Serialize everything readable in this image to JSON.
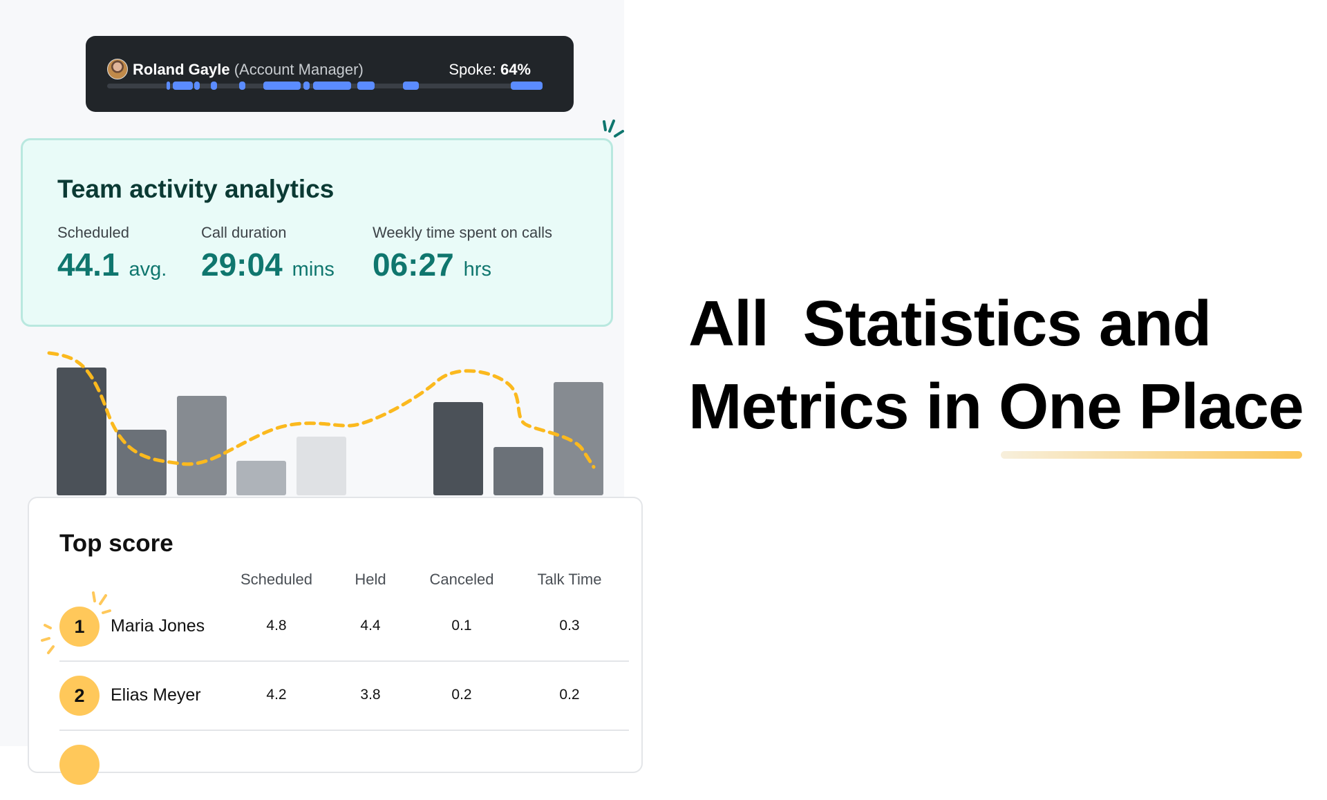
{
  "speaker_card": {
    "name": "Roland Gayle",
    "role": "(Account Manager)",
    "spoke_label": "Spoke:",
    "spoke_value": "64%",
    "spoke_percent": 64
  },
  "analytics": {
    "title": "Team activity analytics",
    "stats": [
      {
        "label": "Scheduled",
        "value": "44.1",
        "unit": "avg."
      },
      {
        "label": "Call duration",
        "value": "29:04",
        "unit": "mins"
      },
      {
        "label": "Weekly time spent on calls",
        "value": "06:27",
        "unit": "hrs"
      }
    ]
  },
  "activity_bars": {
    "values": [
      185,
      95,
      144,
      50,
      85,
      0,
      135,
      70,
      164
    ],
    "colors": [
      "#4b5158",
      "#6b7178",
      "#868b91",
      "#aeb3b9",
      "#dfe1e4",
      "#f7f8fa",
      "#4b5158",
      "#6b7178",
      "#868b91"
    ],
    "trend_color": "#fbb91e"
  },
  "top_score": {
    "title": "Top score",
    "columns": [
      "Scheduled",
      "Held",
      "Canceled",
      "Talk Time"
    ],
    "rows": [
      {
        "rank": "1",
        "name": "Maria Jones",
        "values": [
          "4.8",
          "4.4",
          "0.1",
          "0.3"
        ]
      },
      {
        "rank": "2",
        "name": "Elias Meyer",
        "values": [
          "4.2",
          "3.8",
          "0.2",
          "0.2"
        ]
      }
    ]
  },
  "headline": {
    "line1": "All  Statistics and",
    "line2": "Metrics in One Place"
  },
  "colors": {
    "accent_teal": "#0f766e",
    "accent_yellow": "#ffc85a",
    "highlight_blue": "#5b8cff"
  }
}
